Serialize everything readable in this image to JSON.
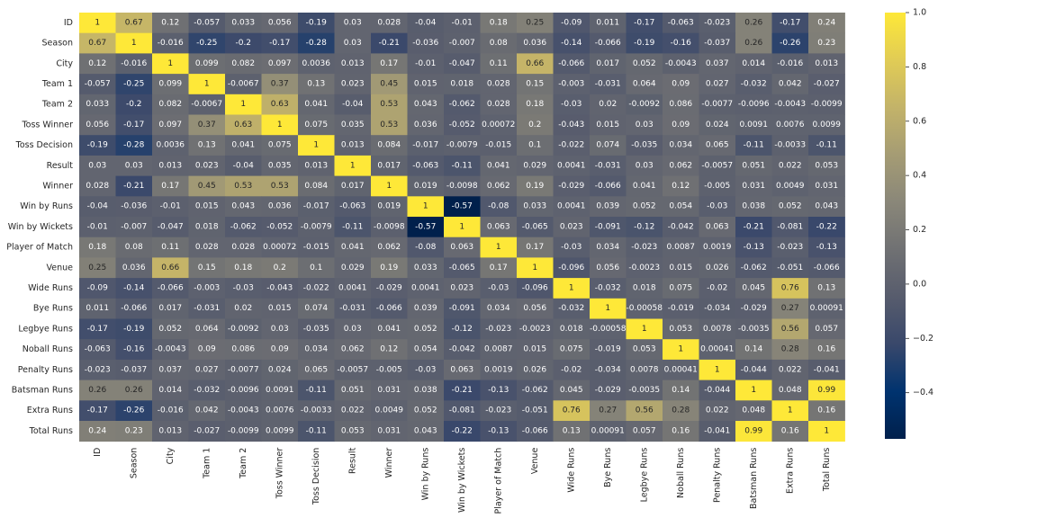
{
  "chart_data": {
    "type": "heatmap",
    "title": "",
    "xlabel": "",
    "ylabel": "",
    "colormap": "cividis",
    "colormap_stops": [
      "#00204c",
      "#00336f",
      "#39486b",
      "#575c6d",
      "#707173",
      "#8a8779",
      "#a59c74",
      "#c3b369",
      "#e1cc55",
      "#fee838"
    ],
    "vmin": -0.57,
    "vmax": 1.0,
    "labels": [
      "ID",
      "Season",
      "City",
      "Team 1",
      "Team 2",
      "Toss Winner",
      "Toss Decision",
      "Result",
      "Winner",
      "Win by Runs",
      "Win by Wickets",
      "Player of Match",
      "Venue",
      "Wide Runs",
      "Bye Runs",
      "Legbye Runs",
      "Noball Runs",
      "Penalty Runs",
      "Batsman Runs",
      "Extra Runs",
      "Total Runs"
    ],
    "matrix": [
      [
        "1",
        "0.67",
        "0.12",
        "-0.057",
        "0.033",
        "0.056",
        "-0.19",
        "0.03",
        "0.028",
        "-0.04",
        "-0.01",
        "0.18",
        "0.25",
        "-0.09",
        "0.011",
        "-0.17",
        "-0.063",
        "-0.023",
        "0.26",
        "-0.17",
        "0.24"
      ],
      [
        "0.67",
        "1",
        "-0.016",
        "-0.25",
        "-0.2",
        "-0.17",
        "-0.28",
        "0.03",
        "-0.21",
        "-0.036",
        "-0.007",
        "0.08",
        "0.036",
        "-0.14",
        "-0.066",
        "-0.19",
        "-0.16",
        "-0.037",
        "0.26",
        "-0.26",
        "0.23"
      ],
      [
        "0.12",
        "-0.016",
        "1",
        "0.099",
        "0.082",
        "0.097",
        "0.0036",
        "0.013",
        "0.17",
        "-0.01",
        "-0.047",
        "0.11",
        "0.66",
        "-0.066",
        "0.017",
        "0.052",
        "-0.0043",
        "0.037",
        "0.014",
        "-0.016",
        "0.013"
      ],
      [
        "-0.057",
        "-0.25",
        "0.099",
        "1",
        "-0.0067",
        "0.37",
        "0.13",
        "0.023",
        "0.45",
        "0.015",
        "0.018",
        "0.028",
        "0.15",
        "-0.003",
        "-0.031",
        "0.064",
        "0.09",
        "0.027",
        "-0.032",
        "0.042",
        "-0.027"
      ],
      [
        "0.033",
        "-0.2",
        "0.082",
        "-0.0067",
        "1",
        "0.63",
        "0.041",
        "-0.04",
        "0.53",
        "0.043",
        "-0.062",
        "0.028",
        "0.18",
        "-0.03",
        "0.02",
        "-0.0092",
        "0.086",
        "-0.0077",
        "-0.0096",
        "-0.0043",
        "-0.0099"
      ],
      [
        "0.056",
        "-0.17",
        "0.097",
        "0.37",
        "0.63",
        "1",
        "0.075",
        "0.035",
        "0.53",
        "0.036",
        "-0.052",
        "0.00072",
        "0.2",
        "-0.043",
        "0.015",
        "0.03",
        "0.09",
        "0.024",
        "0.0091",
        "0.0076",
        "0.0099"
      ],
      [
        "-0.19",
        "-0.28",
        "0.0036",
        "0.13",
        "0.041",
        "0.075",
        "1",
        "0.013",
        "0.084",
        "-0.017",
        "-0.0079",
        "-0.015",
        "0.1",
        "-0.022",
        "0.074",
        "-0.035",
        "0.034",
        "0.065",
        "-0.11",
        "-0.0033",
        "-0.11"
      ],
      [
        "0.03",
        "0.03",
        "0.013",
        "0.023",
        "-0.04",
        "0.035",
        "0.013",
        "1",
        "0.017",
        "-0.063",
        "-0.11",
        "0.041",
        "0.029",
        "0.0041",
        "-0.031",
        "0.03",
        "0.062",
        "-0.0057",
        "0.051",
        "0.022",
        "0.053"
      ],
      [
        "0.028",
        "-0.21",
        "0.17",
        "0.45",
        "0.53",
        "0.53",
        "0.084",
        "0.017",
        "1",
        "0.019",
        "-0.0098",
        "0.062",
        "0.19",
        "-0.029",
        "-0.066",
        "0.041",
        "0.12",
        "-0.005",
        "0.031",
        "0.0049",
        "0.031"
      ],
      [
        "-0.04",
        "-0.036",
        "-0.01",
        "0.015",
        "0.043",
        "0.036",
        "-0.017",
        "-0.063",
        "0.019",
        "1",
        "-0.57",
        "-0.08",
        "0.033",
        "0.0041",
        "0.039",
        "0.052",
        "0.054",
        "-0.03",
        "0.038",
        "0.052",
        "0.043"
      ],
      [
        "-0.01",
        "-0.007",
        "-0.047",
        "0.018",
        "-0.062",
        "-0.052",
        "-0.0079",
        "-0.11",
        "-0.0098",
        "-0.57",
        "1",
        "0.063",
        "-0.065",
        "0.023",
        "-0.091",
        "-0.12",
        "-0.042",
        "0.063",
        "-0.21",
        "-0.081",
        "-0.22"
      ],
      [
        "0.18",
        "0.08",
        "0.11",
        "0.028",
        "0.028",
        "0.00072",
        "-0.015",
        "0.041",
        "0.062",
        "-0.08",
        "0.063",
        "1",
        "0.17",
        "-0.03",
        "0.034",
        "-0.023",
        "0.0087",
        "0.0019",
        "-0.13",
        "-0.023",
        "-0.13"
      ],
      [
        "0.25",
        "0.036",
        "0.66",
        "0.15",
        "0.18",
        "0.2",
        "0.1",
        "0.029",
        "0.19",
        "0.033",
        "-0.065",
        "0.17",
        "1",
        "-0.096",
        "0.056",
        "-0.0023",
        "0.015",
        "0.026",
        "-0.062",
        "-0.051",
        "-0.066"
      ],
      [
        "-0.09",
        "-0.14",
        "-0.066",
        "-0.003",
        "-0.03",
        "-0.043",
        "-0.022",
        "0.0041",
        "-0.029",
        "0.0041",
        "0.023",
        "-0.03",
        "-0.096",
        "1",
        "-0.032",
        "0.018",
        "0.075",
        "-0.02",
        "0.045",
        "0.76",
        "0.13"
      ],
      [
        "0.011",
        "-0.066",
        "0.017",
        "-0.031",
        "0.02",
        "0.015",
        "0.074",
        "-0.031",
        "-0.066",
        "0.039",
        "-0.091",
        "0.034",
        "0.056",
        "-0.032",
        "1",
        "-0.00058",
        "-0.019",
        "-0.034",
        "-0.029",
        "0.27",
        "0.00091"
      ],
      [
        "-0.17",
        "-0.19",
        "0.052",
        "0.064",
        "-0.0092",
        "0.03",
        "-0.035",
        "0.03",
        "0.041",
        "0.052",
        "-0.12",
        "-0.023",
        "-0.0023",
        "0.018",
        "-0.00058",
        "1",
        "0.053",
        "0.0078",
        "-0.0035",
        "0.56",
        "0.057"
      ],
      [
        "-0.063",
        "-0.16",
        "-0.0043",
        "0.09",
        "0.086",
        "0.09",
        "0.034",
        "0.062",
        "0.12",
        "0.054",
        "-0.042",
        "0.0087",
        "0.015",
        "0.075",
        "-0.019",
        "0.053",
        "1",
        "0.00041",
        "0.14",
        "0.28",
        "0.16"
      ],
      [
        "-0.023",
        "-0.037",
        "0.037",
        "0.027",
        "-0.0077",
        "0.024",
        "0.065",
        "-0.0057",
        "-0.005",
        "-0.03",
        "0.063",
        "0.0019",
        "0.026",
        "-0.02",
        "-0.034",
        "0.0078",
        "0.00041",
        "1",
        "-0.044",
        "0.022",
        "-0.041"
      ],
      [
        "0.26",
        "0.26",
        "0.014",
        "-0.032",
        "-0.0096",
        "0.0091",
        "-0.11",
        "0.051",
        "0.031",
        "0.038",
        "-0.21",
        "-0.13",
        "-0.062",
        "0.045",
        "-0.029",
        "-0.0035",
        "0.14",
        "-0.044",
        "1",
        "0.048",
        "0.99"
      ],
      [
        "-0.17",
        "-0.26",
        "-0.016",
        "0.042",
        "-0.0043",
        "0.0076",
        "-0.0033",
        "0.022",
        "0.0049",
        "0.052",
        "-0.081",
        "-0.023",
        "-0.051",
        "0.76",
        "0.27",
        "0.56",
        "0.28",
        "0.022",
        "0.048",
        "1",
        "0.16"
      ],
      [
        "0.24",
        "0.23",
        "0.013",
        "-0.027",
        "-0.0099",
        "0.0099",
        "-0.11",
        "0.053",
        "0.031",
        "0.043",
        "-0.22",
        "-0.13",
        "-0.066",
        "0.13",
        "0.00091",
        "0.057",
        "0.16",
        "-0.041",
        "0.99",
        "0.16",
        "1"
      ]
    ],
    "colorbar": {
      "ticks": [
        "1.0",
        "0.8",
        "0.6",
        "0.4",
        "0.2",
        "0.0",
        "−0.2",
        "−0.4"
      ],
      "tick_values": [
        1.0,
        0.8,
        0.6,
        0.4,
        0.2,
        0.0,
        -0.2,
        -0.4
      ]
    }
  }
}
